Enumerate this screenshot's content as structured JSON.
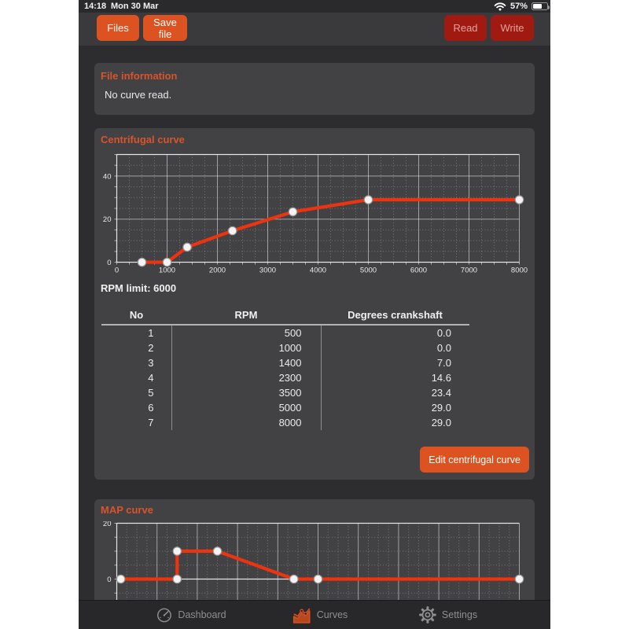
{
  "status_bar": {
    "time": "14:18",
    "date": "Mon 30 Mar",
    "battery": "57%",
    "battery_fill_percent": 57,
    "wifi_icon": "wifi"
  },
  "toolbar": {
    "files": "Files",
    "save_file": "Save file",
    "read": "Read",
    "write": "Write"
  },
  "file_info": {
    "title": "File information",
    "message": "No curve read."
  },
  "centrifugal": {
    "title": "Centrifugal curve",
    "rpm_limit_label": "RPM limit: 6000",
    "table": {
      "headers": [
        "No",
        "RPM",
        "Degrees crankshaft"
      ],
      "rows": [
        [
          "1",
          "500",
          "0.0"
        ],
        [
          "2",
          "1000",
          "0.0"
        ],
        [
          "3",
          "1400",
          "7.0"
        ],
        [
          "4",
          "2300",
          "14.6"
        ],
        [
          "5",
          "3500",
          "23.4"
        ],
        [
          "6",
          "5000",
          "29.0"
        ],
        [
          "7",
          "8000",
          "29.0"
        ]
      ]
    },
    "edit_button": "Edit centrifugal curve"
  },
  "map": {
    "title": "MAP curve"
  },
  "tab_bar": {
    "dashboard": "Dashboard",
    "curves": "Curves",
    "settings": "Settings"
  },
  "colors": {
    "accent_orange": "#dc5220",
    "disabled_red": "#a01a12",
    "curve_red": "#ed330f",
    "panel_bg": "#424244",
    "app_bg": "#2d2d2f",
    "tabbar_bg": "#28282a",
    "text_light": "#f0f0f0",
    "text_gray": "#8f8f8f"
  },
  "chart_data": [
    {
      "name": "centrifugal_curve",
      "type": "line",
      "title": "Centrifugal curve",
      "xlabel": "RPM",
      "ylabel": "Degrees crankshaft",
      "x": [
        500,
        1000,
        1400,
        2300,
        3500,
        5000,
        8000
      ],
      "y": [
        0.0,
        0.0,
        7.0,
        14.6,
        23.4,
        29.0,
        29.0
      ],
      "xlim": [
        0,
        8000
      ],
      "ylim": [
        0,
        50
      ],
      "x_tick_labels": [
        0,
        1000,
        2000,
        3000,
        4000,
        5000,
        6000,
        7000,
        8000
      ],
      "y_tick_labels": [
        0,
        20,
        40
      ],
      "x_major": 1000,
      "x_minor": 250,
      "y_major": 20,
      "y_minor": 5,
      "grid": true,
      "legend": false,
      "line_color": "#ed330f"
    },
    {
      "name": "map_curve",
      "type": "line",
      "title": "MAP curve",
      "x": [
        0.1,
        1.5,
        1.5,
        2.5,
        4.4,
        5.0,
        10
      ],
      "y": [
        0,
        0,
        10,
        10,
        0,
        0,
        0
      ],
      "xlim": [
        0,
        10
      ],
      "ylim": [
        -10,
        20
      ],
      "x_tick_labels": [],
      "y_tick_labels": [
        0,
        20
      ],
      "x_major": 1,
      "x_minor": 0.25,
      "y_major": 20,
      "y_minor": 5,
      "grid": true,
      "legend": false,
      "note": "x-axis labels not visible; chart cut off at bottom edge of screen",
      "line_color": "#ed330f"
    }
  ]
}
